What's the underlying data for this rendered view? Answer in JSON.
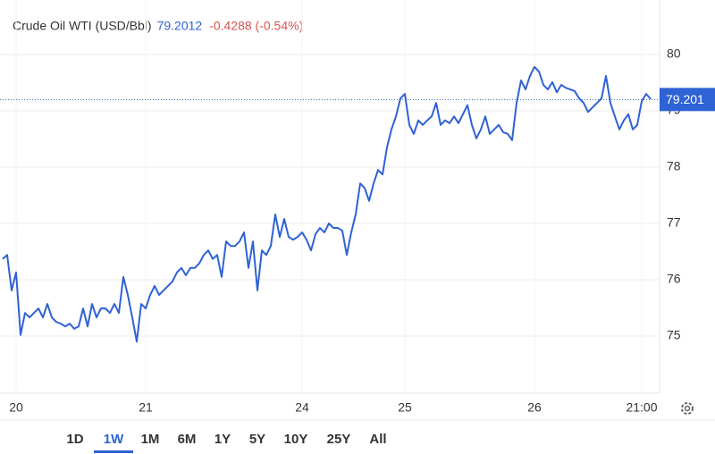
{
  "chart_data": {
    "type": "line",
    "title": "Crude Oil WTI (USD/Bbl)",
    "price": 79.2012,
    "change": "-0.4288 (-0.54%)",
    "last_value": 79.201,
    "xlim": [
      0,
      145
    ],
    "xticks": [
      {
        "value": 3,
        "label": "20"
      },
      {
        "value": 32,
        "label": "21"
      },
      {
        "value": 67,
        "label": "24"
      },
      {
        "value": 90,
        "label": "25"
      },
      {
        "value": 119,
        "label": "26"
      },
      {
        "value": 143,
        "label": "21:00"
      }
    ],
    "ylim": [
      74,
      81
    ],
    "yticks": [
      75,
      76,
      77,
      78,
      79,
      80
    ],
    "grid": true,
    "series": [
      {
        "name": "Crude Oil WTI",
        "color": "#2f62d4",
        "values": [
          76.37,
          76.44,
          75.81,
          76.13,
          75.02,
          75.41,
          75.33,
          75.41,
          75.49,
          75.33,
          75.57,
          75.33,
          75.25,
          75.22,
          75.17,
          75.22,
          75.13,
          75.17,
          75.49,
          75.17,
          75.57,
          75.33,
          75.49,
          75.49,
          75.41,
          75.57,
          75.41,
          76.05,
          75.73,
          75.33,
          74.9,
          75.57,
          75.49,
          75.73,
          75.89,
          75.73,
          75.81,
          75.89,
          75.97,
          76.13,
          76.21,
          76.08,
          76.21,
          76.21,
          76.29,
          76.44,
          76.52,
          76.37,
          76.44,
          76.05,
          76.68,
          76.6,
          76.6,
          76.68,
          76.84,
          76.21,
          76.68,
          75.81,
          76.52,
          76.44,
          76.6,
          77.16,
          76.76,
          77.08,
          76.76,
          76.71,
          76.76,
          76.84,
          76.71,
          76.52,
          76.81,
          76.92,
          76.84,
          77.0,
          76.92,
          76.92,
          76.87,
          76.44,
          76.84,
          77.16,
          77.71,
          77.63,
          77.4,
          77.71,
          77.95,
          77.87,
          78.35,
          78.67,
          78.9,
          79.22,
          79.3,
          78.75,
          78.59,
          78.83,
          78.75,
          78.83,
          78.9,
          79.14,
          78.75,
          78.83,
          78.78,
          78.9,
          78.78,
          78.94,
          79.1,
          78.75,
          78.51,
          78.67,
          78.9,
          78.59,
          78.67,
          78.75,
          78.62,
          78.59,
          78.48,
          79.14,
          79.54,
          79.38,
          79.62,
          79.78,
          79.7,
          79.46,
          79.38,
          79.51,
          79.33,
          79.46,
          79.41,
          79.38,
          79.35,
          79.22,
          79.14,
          78.98,
          79.06,
          79.14,
          79.22,
          79.62,
          79.14,
          78.9,
          78.67,
          78.83,
          78.94,
          78.67,
          78.75,
          79.17,
          79.3,
          79.21
        ]
      }
    ]
  },
  "ranges": [
    "1D",
    "1W",
    "1M",
    "6M",
    "1Y",
    "5Y",
    "10Y",
    "25Y",
    "All"
  ],
  "active_range": 1
}
